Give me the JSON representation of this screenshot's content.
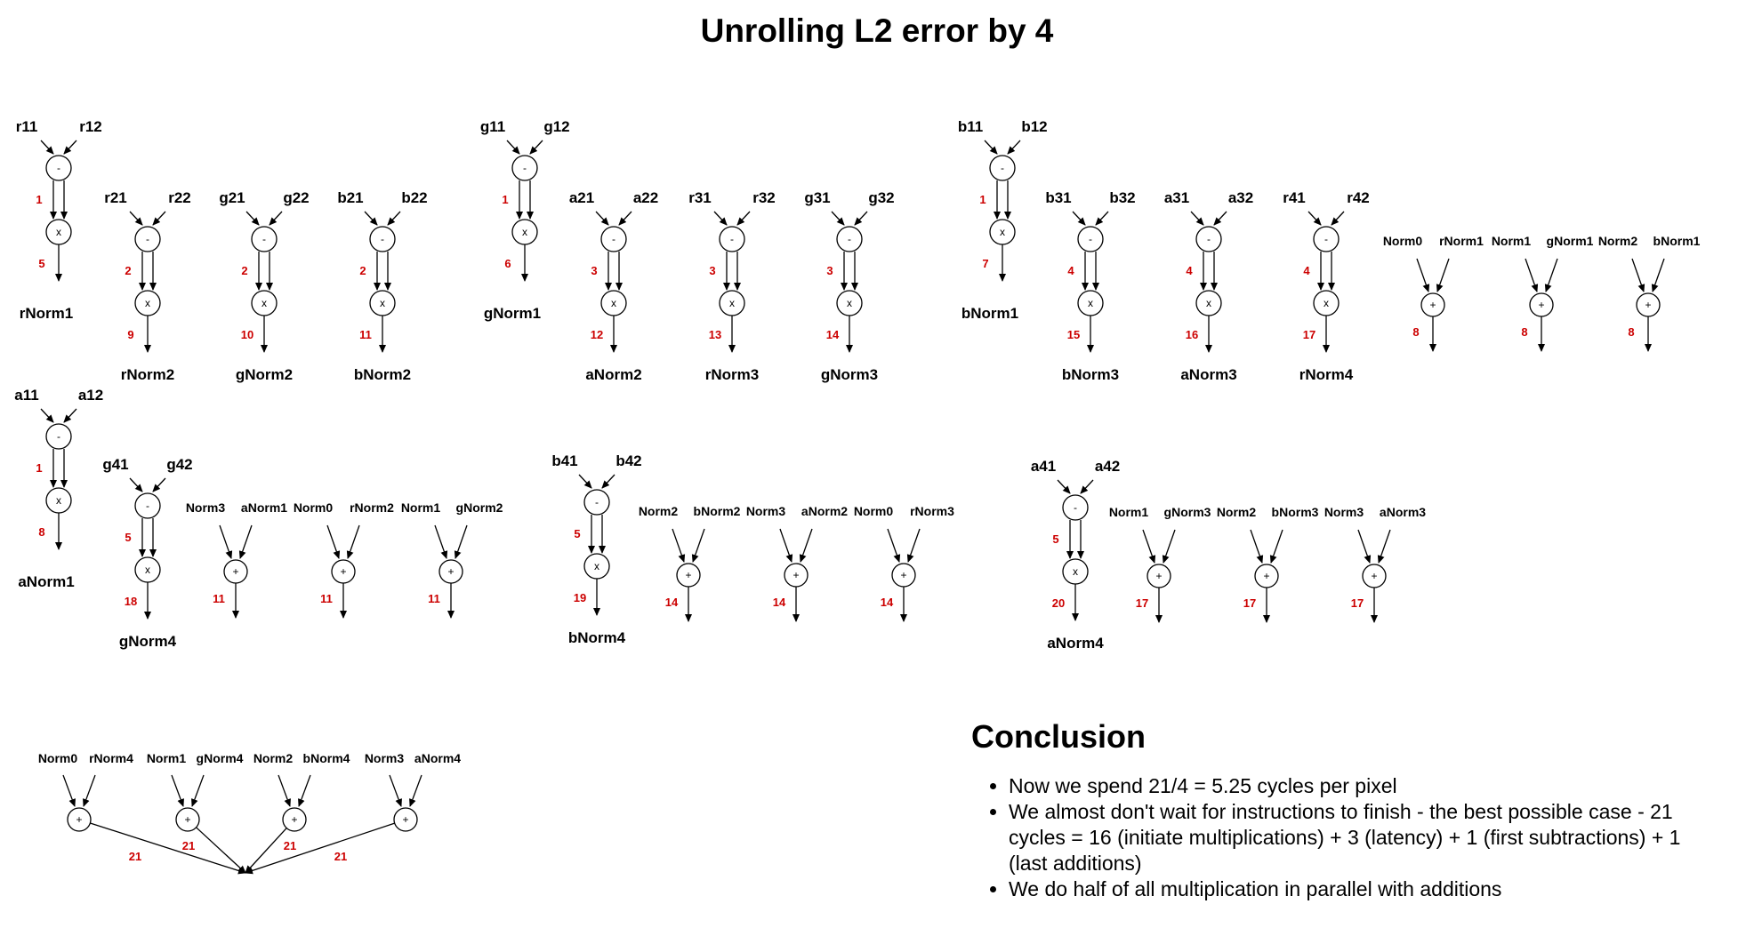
{
  "title": "Unrolling L2 error by 4",
  "sub_groups": [
    {
      "in1": "r11",
      "in2": "r12",
      "lat1": "1",
      "lat2": "5",
      "out": "rNorm1"
    },
    {
      "in1": "r21",
      "in2": "r22",
      "lat1": "2",
      "lat2": "9",
      "out": "rNorm2"
    },
    {
      "in1": "g21",
      "in2": "g22",
      "lat1": "2",
      "lat2": "10",
      "out": "gNorm2"
    },
    {
      "in1": "b21",
      "in2": "b22",
      "lat1": "2",
      "lat2": "11",
      "out": "bNorm2"
    },
    {
      "in1": "g11",
      "in2": "g12",
      "lat1": "1",
      "lat2": "6",
      "out": "gNorm1"
    },
    {
      "in1": "a21",
      "in2": "a22",
      "lat1": "3",
      "lat2": "12",
      "out": "aNorm2"
    },
    {
      "in1": "r31",
      "in2": "r32",
      "lat1": "3",
      "lat2": "13",
      "out": "rNorm3"
    },
    {
      "in1": "g31",
      "in2": "g32",
      "lat1": "3",
      "lat2": "14",
      "out": "gNorm3"
    },
    {
      "in1": "b11",
      "in2": "b12",
      "lat1": "1",
      "lat2": "7",
      "out": "bNorm1"
    },
    {
      "in1": "b31",
      "in2": "b32",
      "lat1": "4",
      "lat2": "15",
      "out": "bNorm3"
    },
    {
      "in1": "a31",
      "in2": "a32",
      "lat1": "4",
      "lat2": "16",
      "out": "aNorm3"
    },
    {
      "in1": "r41",
      "in2": "r42",
      "lat1": "4",
      "lat2": "17",
      "out": "rNorm4"
    },
    {
      "in1": "a11",
      "in2": "a12",
      "lat1": "1",
      "lat2": "8",
      "out": "aNorm1"
    },
    {
      "in1": "g41",
      "in2": "g42",
      "lat1": "5",
      "lat2": "18",
      "out": "gNorm4"
    },
    {
      "in1": "b41",
      "in2": "b42",
      "lat1": "5",
      "lat2": "19",
      "out": "bNorm4"
    },
    {
      "in1": "a41",
      "in2": "a42",
      "lat1": "5",
      "lat2": "20",
      "out": "aNorm4"
    }
  ],
  "add_groups": [
    {
      "in1": "Norm0",
      "in2": "rNorm1",
      "lat": "8"
    },
    {
      "in1": "Norm1",
      "in2": "gNorm1",
      "lat": "8"
    },
    {
      "in1": "Norm2",
      "in2": "bNorm1",
      "lat": "8"
    },
    {
      "in1": "Norm3",
      "in2": "aNorm1",
      "lat": "11"
    },
    {
      "in1": "Norm0",
      "in2": "rNorm2",
      "lat": "11"
    },
    {
      "in1": "Norm1",
      "in2": "gNorm2",
      "lat": "11"
    },
    {
      "in1": "Norm2",
      "in2": "bNorm2",
      "lat": "14"
    },
    {
      "in1": "Norm3",
      "in2": "aNorm2",
      "lat": "14"
    },
    {
      "in1": "Norm0",
      "in2": "rNorm3",
      "lat": "14"
    },
    {
      "in1": "Norm1",
      "in2": "gNorm3",
      "lat": "17"
    },
    {
      "in1": "Norm2",
      "in2": "bNorm3",
      "lat": "17"
    },
    {
      "in1": "Norm3",
      "in2": "aNorm3",
      "lat": "17"
    }
  ],
  "final_groups": [
    {
      "in1": "Norm0",
      "in2": "rNorm4",
      "lat": "21"
    },
    {
      "in1": "Norm1",
      "in2": "gNorm4",
      "lat": "21"
    },
    {
      "in1": "Norm2",
      "in2": "bNorm4",
      "lat": "21"
    },
    {
      "in1": "Norm3",
      "in2": "aNorm4",
      "lat": "21"
    }
  ],
  "ops": {
    "sub": "-",
    "mul": "x",
    "add": "+"
  },
  "conclusion": {
    "heading": "Conclusion",
    "items": [
      "Now we spend 21/4 = 5.25 cycles per pixel",
      "We almost don't wait for instructions to finish - the best possible case - 21 cycles = 16 (initiate multiplications) + 3 (latency) + 1 (first subtractions) + 1 (last additions)",
      "We do half of all multiplication in parallel with additions"
    ]
  },
  "colors": {
    "latency": "#cc0000",
    "ink": "#000000",
    "background": "#ffffff"
  }
}
